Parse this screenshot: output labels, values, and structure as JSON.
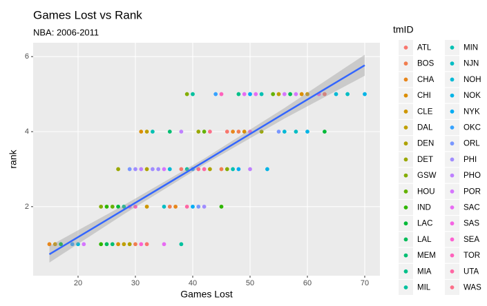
{
  "chart_data": {
    "type": "scatter",
    "title": "Games Lost vs Rank",
    "subtitle": "NBA: 2006-2011",
    "x_label": "Games Lost",
    "y_label": "rank",
    "legend_title": "tmID",
    "xlim": [
      12.17,
      72.65
    ],
    "xticks": [
      20,
      30,
      40,
      50,
      60,
      70
    ],
    "ylim": [
      0.16,
      6.37
    ],
    "yticks": [
      2,
      4,
      6
    ],
    "grid": true,
    "legend": "right",
    "fit": {
      "color": "#3366FF",
      "band_color": "#999999",
      "x": [
        15,
        28,
        42,
        56,
        70
      ],
      "values": [
        0.73,
        1.92,
        3.2,
        4.49,
        5.77
      ],
      "lower": [
        0.51,
        1.8,
        3.12,
        4.35,
        5.49
      ],
      "upper": [
        0.95,
        2.04,
        3.28,
        4.63,
        6.05
      ]
    },
    "series": [
      {
        "name": "ATL",
        "color": "#F8766D",
        "x": [
          32,
          38,
          46,
          63
        ],
        "values": [
          1,
          3,
          4,
          5
        ]
      },
      {
        "name": "BOS",
        "color": "#F17E4F",
        "x": [
          30,
          36,
          45,
          48
        ],
        "values": [
          1,
          2,
          3,
          4
        ]
      },
      {
        "name": "CHA",
        "color": "#E7861B",
        "x": [
          15,
          37,
          47
        ],
        "values": [
          1,
          2,
          4
        ]
      },
      {
        "name": "CHI",
        "color": "#DB8E00",
        "x": [
          27,
          31,
          49,
          59
        ],
        "values": [
          1,
          4,
          4,
          5
        ]
      },
      {
        "name": "CLE",
        "color": "#CE9700",
        "x": [
          16,
          32,
          60
        ],
        "values": [
          1,
          2,
          5
        ]
      },
      {
        "name": "DAL",
        "color": "#BF9F00",
        "x": [
          28,
          32,
          55
        ],
        "values": [
          1,
          4,
          5
        ]
      },
      {
        "name": "DEN",
        "color": "#AEA200",
        "x": [
          29,
          32,
          43
        ],
        "values": [
          1,
          3,
          3
        ]
      },
      {
        "name": "DET",
        "color": "#9AA800",
        "x": [
          27,
          41,
          52
        ],
        "values": [
          3,
          4,
          4
        ]
      },
      {
        "name": "GSW",
        "color": "#83AD00",
        "x": [
          24,
          46,
          39
        ],
        "values": [
          2,
          3,
          5
        ]
      },
      {
        "name": "HOU",
        "color": "#64B200",
        "x": [
          26,
          42,
          54
        ],
        "values": [
          2,
          4,
          5
        ]
      },
      {
        "name": "IND",
        "color": "#2EB600",
        "x": [
          24,
          25,
          45
        ],
        "values": [
          1,
          2,
          2
        ]
      },
      {
        "name": "LAC",
        "color": "#00BA38",
        "x": [
          17,
          27,
          63
        ],
        "values": [
          1,
          2,
          4
        ]
      },
      {
        "name": "LAL",
        "color": "#00BC59",
        "x": [
          25,
          57
        ],
        "values": [
          1,
          5
        ]
      },
      {
        "name": "MEM",
        "color": "#00BE72",
        "x": [
          26,
          36
        ],
        "values": [
          1,
          4
        ]
      },
      {
        "name": "MIA",
        "color": "#00C089",
        "x": [
          28,
          48
        ],
        "values": [
          2,
          5
        ]
      },
      {
        "name": "MIL",
        "color": "#00C19E",
        "x": [
          38,
          39,
          40
        ],
        "values": [
          1,
          3,
          5
        ]
      },
      {
        "name": "MIN",
        "color": "#00C0B2",
        "x": [
          33,
          47,
          52
        ],
        "values": [
          4,
          3,
          5
        ]
      },
      {
        "name": "NJN",
        "color": "#00BDC4",
        "x": [
          35,
          58,
          67
        ],
        "values": [
          2,
          4,
          5
        ]
      },
      {
        "name": "NOH",
        "color": "#00B9D6",
        "x": [
          20,
          36,
          56,
          65
        ],
        "values": [
          1,
          3,
          4,
          5
        ]
      },
      {
        "name": "NOK",
        "color": "#00B4E6",
        "x": [
          53,
          70,
          60
        ],
        "values": [
          3,
          5,
          4
        ]
      },
      {
        "name": "NYK",
        "color": "#00ACF4",
        "x": [
          40,
          48,
          50
        ],
        "values": [
          2,
          3,
          5
        ]
      },
      {
        "name": "OKC",
        "color": "#35A2FF",
        "x": [
          19,
          40,
          44
        ],
        "values": [
          1,
          3,
          5
        ]
      },
      {
        "name": "ORL",
        "color": "#7997FF",
        "x": [
          29,
          41,
          55
        ],
        "values": [
          3,
          2,
          4
        ]
      },
      {
        "name": "PHI",
        "color": "#A08CFF",
        "x": [
          30,
          33,
          34,
          42
        ],
        "values": [
          3,
          3,
          3,
          2
        ]
      },
      {
        "name": "PHO",
        "color": "#BE80FF",
        "x": [
          31,
          38,
          50
        ],
        "values": [
          3,
          4,
          3
        ]
      },
      {
        "name": "POR",
        "color": "#D575FE",
        "x": [
          21,
          35,
          56,
          58
        ],
        "values": [
          1,
          3,
          5,
          5
        ]
      },
      {
        "name": "SAC",
        "color": "#E76BF3",
        "x": [
          35,
          51,
          49
        ],
        "values": [
          1,
          5,
          5
        ]
      },
      {
        "name": "SAS",
        "color": "#F564E3",
        "x": [
          29,
          50,
          62
        ],
        "values": [
          2,
          4,
          5
        ]
      },
      {
        "name": "SEA",
        "color": "#FD61D2",
        "x": [
          31
        ],
        "values": [
          1
        ]
      },
      {
        "name": "TOR",
        "color": "#FF62BC",
        "x": [
          30,
          45
        ],
        "values": [
          2,
          5
        ]
      },
      {
        "name": "UTA",
        "color": "#FF67A4",
        "x": [
          39,
          42
        ],
        "values": [
          2,
          3
        ]
      },
      {
        "name": "WAS",
        "color": "#FC6F89",
        "x": [
          43,
          41
        ],
        "values": [
          4,
          3
        ]
      }
    ]
  }
}
